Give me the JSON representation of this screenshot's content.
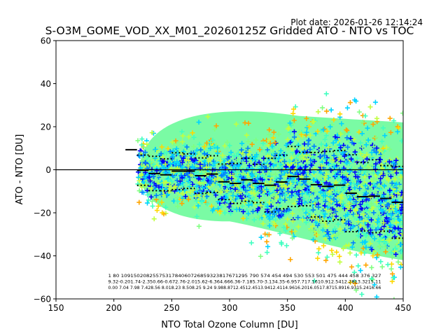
{
  "plot_date": "Plot date: 2026-01-26 12:14:24",
  "chart_data": {
    "type": "scatter",
    "title": "S-O3M_GOME_VOD_XX_M01_20260125Z Gridded ATO - NTO vs TOC",
    "xlabel": "NTO Total Ozone Column [DU]",
    "ylabel": "ATO - NTO [DU]",
    "xlim": [
      150,
      450
    ],
    "ylim": [
      -60,
      60
    ],
    "xticks": [
      "150",
      "200",
      "250",
      "300",
      "350",
      "400",
      "450"
    ],
    "yticks": [
      "60",
      "40",
      "20",
      "0",
      "−20",
      "−40",
      "−60"
    ],
    "zero_line": 0,
    "bins": {
      "edges_start": 210,
      "width": 10,
      "mean": [
        9.32,
        -0.2,
        -1.74,
        -2.35,
        -0.66,
        -0.67,
        -2.76,
        -2.01,
        -5.62,
        -6.36,
        -4.66,
        -6.36,
        -7.18,
        -5.7,
        -3.13,
        -4.35,
        -6.95,
        -7.71,
        -7.16,
        -10.91,
        -12.54,
        -12.28,
        -13.32,
        -15.11
      ],
      "std": [
        0.0,
        7.04,
        7.98,
        7.42,
        8.56,
        8.01,
        8.23,
        8.5,
        8.25,
        9.24,
        9.98,
        8.87,
        12.45,
        12.45,
        13.94,
        12.41,
        14.96,
        16.2,
        16.05,
        17.87,
        15.89,
        16.93,
        15.24,
        16.66
      ]
    },
    "annotation_rows": [
      "1    80 10915020825575317840607268593238176712​95 790  574  454  494  530  553  501  475  444  458  376  327",
      "9.32-0.201.74-2.350.66-0.672.76-2.015.62-6.364.666.36-7.185.70-3.134.35-6.957.717.1610.912.5412.2813.3215.11",
      "0.00 7.04 7.98 7.428.56 8.018.23 8.508.25 9.24 9.988.8712.4512.4513.9412.4114.9616.2016.0517.8715.8916.9315.2416.66"
    ],
    "colormap": [
      "#0000ff",
      "#0080ff",
      "#00d4ff",
      "#40ffc0",
      "#80ff80",
      "#c0ff40",
      "#ffd700",
      "#ffa500"
    ]
  }
}
